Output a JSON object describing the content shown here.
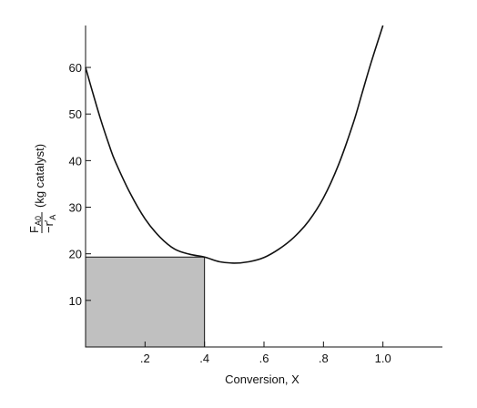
{
  "chart_data": {
    "type": "line",
    "title": "",
    "xlabel": "Conversion, X",
    "ylabel": {
      "numerator_main": "F",
      "numerator_sub": "A0",
      "denominator_main": "−r′",
      "denominator_sub": "A",
      "units": "(kg catalyst)"
    },
    "xlim": [
      0,
      1.2
    ],
    "ylim": [
      0,
      69
    ],
    "x_ticks": [
      {
        "value": 0.2,
        "label": ".2"
      },
      {
        "value": 0.4,
        "label": ".4"
      },
      {
        "value": 0.6,
        "label": ".6"
      },
      {
        "value": 0.8,
        "label": ".8"
      },
      {
        "value": 1.0,
        "label": "1.0"
      }
    ],
    "y_ticks": [
      {
        "value": 10,
        "label": "10"
      },
      {
        "value": 20,
        "label": "20"
      },
      {
        "value": 30,
        "label": "30"
      },
      {
        "value": 40,
        "label": "40"
      },
      {
        "value": 50,
        "label": "50"
      },
      {
        "value": 60,
        "label": "60"
      }
    ],
    "grid": false,
    "series": [
      {
        "x": [
          0,
          0.02,
          0.05,
          0.08,
          0.1,
          0.15,
          0.2,
          0.25,
          0.3,
          0.35,
          0.4,
          0.45,
          0.5,
          0.55,
          0.6,
          0.65,
          0.7,
          0.75,
          0.8,
          0.85,
          0.9,
          0.93,
          0.96,
          1.0
        ],
        "y": [
          60,
          55.5,
          49,
          43.2,
          39.8,
          33,
          27.5,
          23.6,
          21,
          19.9,
          19.3,
          18.3,
          18,
          18.3,
          19.2,
          21,
          23.5,
          27,
          32,
          39,
          48,
          54.5,
          61,
          69
        ]
      }
    ],
    "shaded_rectangle": {
      "x": [
        0,
        0.4
      ],
      "y": [
        0,
        19.3
      ],
      "color": "#c0c0c0"
    },
    "colors": {
      "curve": "#111111",
      "axis": "#111111",
      "fill": "#c0c0c0",
      "background": "#ffffff"
    }
  }
}
